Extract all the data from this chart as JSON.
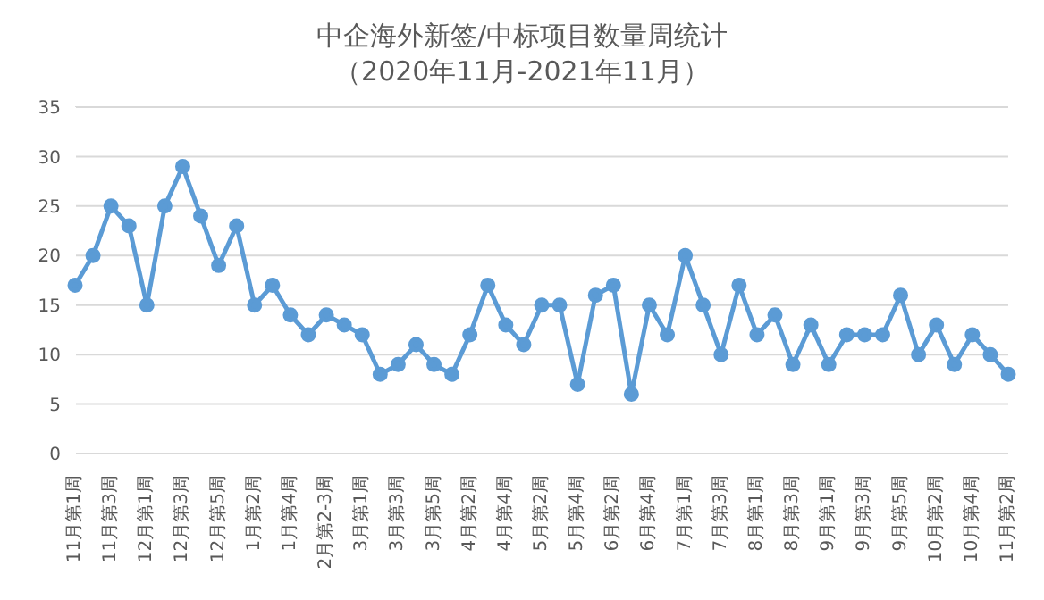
{
  "chart_data": {
    "type": "line",
    "title": "中企海外新签/中标项目数量周统计",
    "subtitle": "（2020年11月-2021年11月）",
    "categories": [
      "11月第1周",
      null,
      "11月第3周",
      null,
      "12月第1周",
      null,
      "12月第3周",
      null,
      "12月第5周",
      null,
      "1月第2周",
      null,
      "1月第4周",
      null,
      "2月第2-3周",
      null,
      "3月第1周",
      null,
      "3月第3周",
      null,
      "3月第5周",
      null,
      "4月第2周",
      null,
      "4月第4周",
      null,
      "5月第2周",
      null,
      "5月第4周",
      null,
      "6月第2周",
      null,
      "6月第4周",
      null,
      "7月第1周",
      null,
      "7月第3周",
      null,
      "8月第1周",
      null,
      "8月第3周",
      null,
      "9月第1周",
      null,
      "9月第3周",
      null,
      "9月第5周",
      null,
      "10月第2周",
      null,
      "10月第4周",
      null,
      "11月第2周"
    ],
    "series": [
      {
        "color": "#5b9bd5",
        "values": [
          17,
          20,
          25,
          23,
          15,
          25,
          29,
          24,
          19,
          23,
          15,
          17,
          14,
          12,
          14,
          13,
          12,
          8,
          9,
          11,
          9,
          8,
          12,
          17,
          13,
          11,
          15,
          15,
          7,
          16,
          17,
          6,
          15,
          12,
          20,
          15,
          10,
          17,
          12,
          14,
          9,
          13,
          9,
          12,
          12,
          12,
          16,
          10,
          13,
          9,
          12,
          10,
          8
        ]
      }
    ],
    "ylim": [
      0,
      35
    ],
    "yticks": [
      0,
      5,
      10,
      15,
      20,
      25,
      30,
      35
    ],
    "grid": "y",
    "marker": "circle",
    "line_style": "solid"
  }
}
